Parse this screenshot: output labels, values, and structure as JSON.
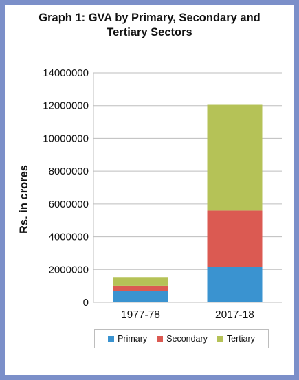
{
  "chart_data": {
    "type": "bar",
    "stacked": true,
    "title_lines": [
      "Graph 1: GVA by Primary, Secondary and",
      "Tertiary  Sectors"
    ],
    "xlabel": "",
    "ylabel": "Rs. in crores",
    "categories": [
      "1977-78",
      "2017-18"
    ],
    "ylim": [
      0,
      14000000
    ],
    "yticks": [
      "0",
      "2000000",
      "4000000",
      "6000000",
      "8000000",
      "10000000",
      "12000000",
      "14000000"
    ],
    "grid": true,
    "legend_position": "bottom",
    "series": [
      {
        "name": "Primary",
        "color": "#3a93d0",
        "values": [
          680000,
          2150000
        ]
      },
      {
        "name": "Secondary",
        "color": "#db5a52",
        "values": [
          330000,
          3450000
        ]
      },
      {
        "name": "Tertiary",
        "color": "#b5c257",
        "values": [
          530000,
          6450000
        ]
      }
    ]
  }
}
